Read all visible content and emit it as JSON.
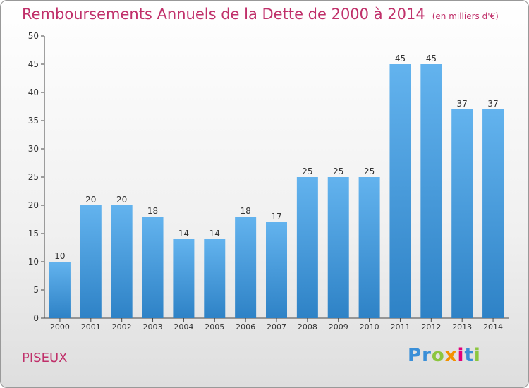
{
  "title": "Remboursements Annuels de la Dette de 2000 à 2014",
  "subtitle": "(en milliers d'€)",
  "commune": "PISEUX",
  "logo": {
    "letters": [
      "P",
      "r",
      "o",
      "x",
      "i",
      "t",
      "i"
    ],
    "colors": [
      "#3a8fd8",
      "#3a8fd8",
      "#8cc63f",
      "#f39200",
      "#e2007a",
      "#3a8fd8",
      "#8cc63f"
    ]
  },
  "colors": {
    "bar_light": "#63b3ee",
    "bar_dark": "#2e82c6",
    "title": "#c0306a"
  },
  "chart_data": {
    "type": "bar",
    "categories": [
      "2000",
      "2001",
      "2002",
      "2003",
      "2004",
      "2005",
      "2006",
      "2007",
      "2008",
      "2009",
      "2010",
      "2011",
      "2012",
      "2013",
      "2014"
    ],
    "values": [
      10,
      20,
      20,
      18,
      14,
      14,
      18,
      17,
      25,
      25,
      25,
      45,
      45,
      37,
      37
    ],
    "ylim": [
      0,
      50
    ],
    "yticks": [
      0,
      5,
      10,
      15,
      20,
      25,
      30,
      35,
      40,
      45,
      50
    ],
    "grid": false
  }
}
